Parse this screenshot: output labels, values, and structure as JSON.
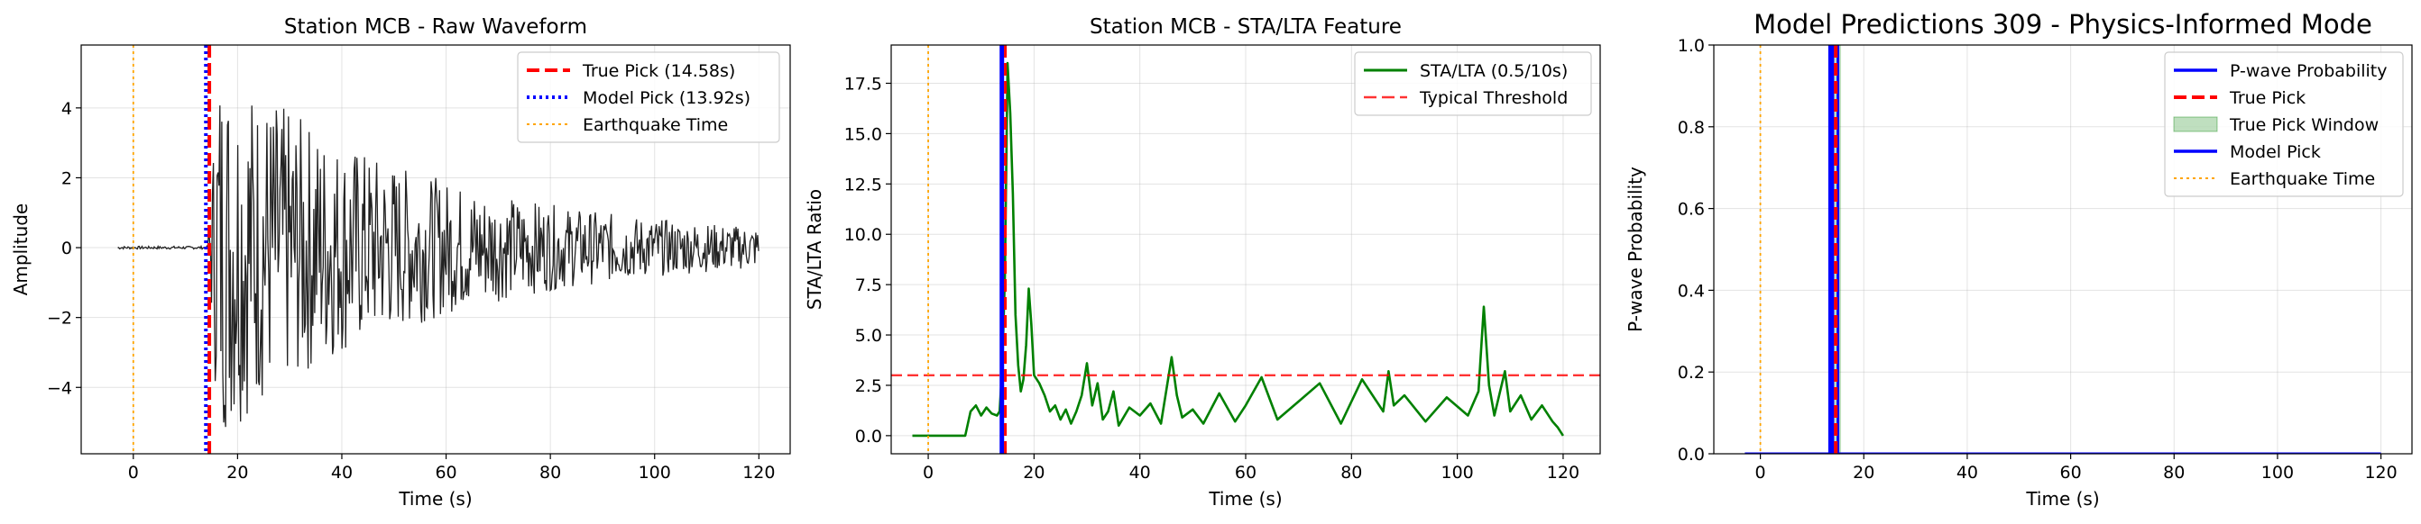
{
  "chart_data": [
    {
      "type": "line",
      "title": "Station MCB - Raw Waveform",
      "xlabel": "Time (s)",
      "ylabel": "Amplitude",
      "xlim": [
        -10,
        126
      ],
      "ylim": [
        -5.9,
        5.8
      ],
      "xticks": [
        0,
        20,
        40,
        60,
        80,
        100,
        120
      ],
      "yticks": [
        -4,
        -2,
        0,
        2,
        4
      ],
      "grid": true,
      "legend_position": "top-right",
      "series": [
        {
          "name": "",
          "color": "#000000",
          "style": "solid",
          "waveform": {
            "start": -3,
            "end": 120,
            "onset": 14.3,
            "peak": 5.3,
            "pre_amplitude": 0.04
          }
        }
      ],
      "vlines": [
        {
          "name": "True Pick (14.58s)",
          "x": 14.58,
          "color": "#ff0000",
          "style": "dashed"
        },
        {
          "name": "Model Pick (13.92s)",
          "x": 13.92,
          "color": "#0000ff",
          "style": "dotted"
        },
        {
          "name": "Earthquake Time",
          "x": 0,
          "color": "#ffa500",
          "style": "dotted"
        }
      ]
    },
    {
      "type": "line",
      "title": "Station MCB - STA/LTA Feature",
      "xlabel": "Time (s)",
      "ylabel": "STA/LTA Ratio",
      "xlim": [
        -7,
        127
      ],
      "ylim": [
        -0.9,
        19.4
      ],
      "xticks": [
        0,
        20,
        40,
        60,
        80,
        100,
        120
      ],
      "yticks": [
        0.0,
        2.5,
        5.0,
        7.5,
        10.0,
        12.5,
        15.0,
        17.5
      ],
      "grid": true,
      "legend_position": "top-right",
      "series": [
        {
          "name": "STA/LTA (0.5/10s)",
          "color": "#008000",
          "style": "solid",
          "x": [
            -3,
            7,
            8,
            9,
            10,
            11,
            12,
            13,
            13.5,
            14,
            14.5,
            15,
            15.5,
            16,
            16.5,
            17,
            17.5,
            18,
            18.5,
            19,
            19.5,
            20,
            21,
            22,
            23,
            24,
            25,
            26,
            27,
            28,
            29,
            30,
            31,
            32,
            33,
            34,
            35,
            36,
            38,
            40,
            42,
            44,
            46,
            47,
            48,
            50,
            52,
            55,
            58,
            60,
            63,
            66,
            70,
            74,
            78,
            82,
            86,
            87,
            88,
            90,
            94,
            98,
            102,
            104,
            105,
            106,
            107,
            109,
            110,
            112,
            114,
            116,
            118,
            119,
            120
          ],
          "y": [
            0.0,
            0.0,
            1.2,
            1.5,
            1.0,
            1.4,
            1.1,
            1.0,
            1.2,
            3.5,
            8.0,
            18.5,
            16.0,
            12.0,
            6.0,
            3.5,
            2.2,
            2.8,
            4.5,
            7.3,
            5.5,
            3.0,
            2.6,
            2.0,
            1.2,
            1.5,
            0.8,
            1.3,
            0.6,
            1.2,
            2.0,
            3.6,
            1.5,
            2.6,
            0.8,
            1.2,
            2.2,
            0.5,
            1.4,
            1.0,
            1.6,
            0.6,
            3.9,
            2.0,
            0.9,
            1.3,
            0.6,
            2.1,
            0.7,
            1.5,
            2.9,
            0.8,
            1.7,
            2.6,
            0.6,
            2.8,
            1.2,
            3.2,
            1.5,
            2.0,
            0.7,
            1.9,
            1.0,
            2.2,
            6.4,
            2.5,
            1.0,
            3.2,
            1.2,
            2.0,
            0.8,
            1.5,
            0.7,
            0.4,
            0.0
          ]
        },
        {
          "name": "Typical Threshold",
          "y_const": 3.0,
          "color": "#ff0000",
          "style": "dashed"
        }
      ],
      "vlines": [
        {
          "name": "",
          "x": 14.58,
          "color": "#ff0000",
          "style": "dashed"
        },
        {
          "name": "",
          "x": 13.92,
          "color": "#0000ff",
          "style": "solid"
        },
        {
          "name": "",
          "x": 0,
          "color": "#ffa500",
          "style": "dotted"
        }
      ]
    },
    {
      "type": "line",
      "title": "Model Predictions 309 - Physics-Informed Mode",
      "xlabel": "Time (s)",
      "ylabel": "P-wave Probability",
      "xlim": [
        -9,
        126
      ],
      "ylim": [
        0.0,
        1.0
      ],
      "xticks": [
        0,
        20,
        40,
        60,
        80,
        100,
        120
      ],
      "yticks": [
        0.0,
        0.2,
        0.4,
        0.6,
        0.8,
        1.0
      ],
      "grid": true,
      "legend_position": "top-right",
      "series": [
        {
          "name": "P-wave Probability",
          "color": "#0000ff",
          "style": "solid",
          "x": [
            -3,
            13.4,
            13.4,
            15.0,
            15.0,
            120
          ],
          "y": [
            0,
            0,
            1,
            1,
            0,
            0
          ]
        },
        {
          "name": "True Pick",
          "x": 14.58,
          "color": "#ff0000",
          "style": "dashed"
        },
        {
          "name": "True Pick Window",
          "x_range": [
            13.6,
            15.6
          ],
          "color": "#008000",
          "style": "fill"
        },
        {
          "name": "Model Pick",
          "x": 13.92,
          "color": "#0000ff",
          "style": "solid"
        },
        {
          "name": "Earthquake Time",
          "x": 0,
          "color": "#ffa500",
          "style": "dotted"
        }
      ]
    }
  ]
}
